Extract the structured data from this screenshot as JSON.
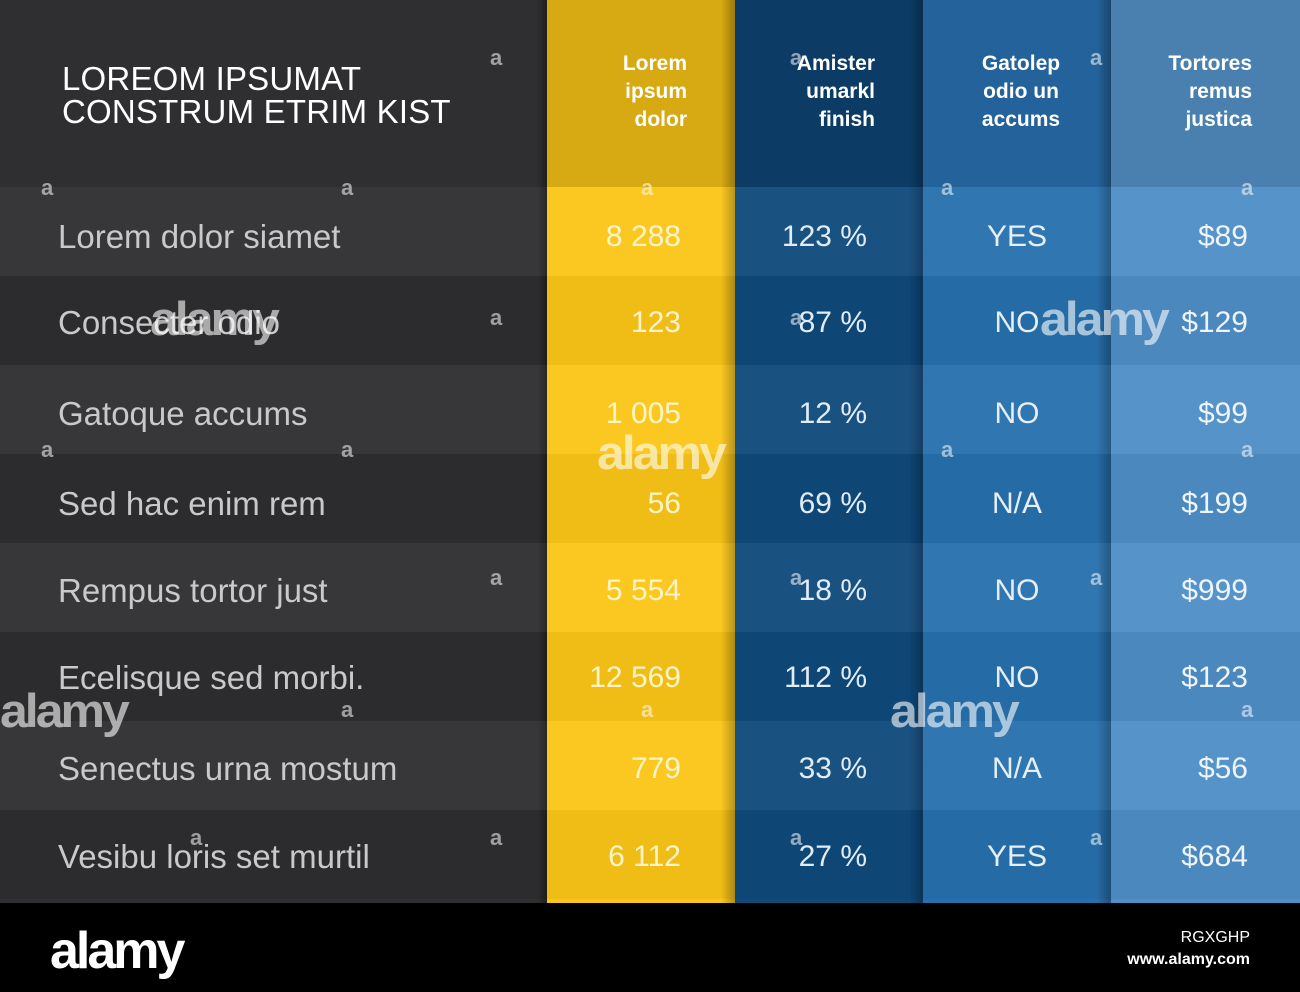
{
  "title_lines": [
    "LOREOM IPSUMAT",
    "CONSTRUM ETRIM KIST"
  ],
  "columns": [
    {
      "lines": [
        "Lorem",
        "ipsum",
        "dolor"
      ],
      "color": "#fbc619"
    },
    {
      "lines": [
        "Amister",
        "umarkl",
        "finish"
      ],
      "color": "#0f4a7c"
    },
    {
      "lines": [
        "Gatolep",
        "odio un",
        "accums"
      ],
      "color": "#2770ad"
    },
    {
      "lines": [
        "Tortores",
        "remus",
        "justica"
      ],
      "color": "#4e8fc7"
    }
  ],
  "rows": [
    {
      "label": "Lorem dolor siamet",
      "c1": "8 288",
      "c2": "123 %",
      "c3": "YES",
      "c4": "$89"
    },
    {
      "label": "Consecter odio",
      "c1": "123",
      "c2": "87 %",
      "c3": "NO",
      "c4": "$129"
    },
    {
      "label": "Gatoque accums",
      "c1": "1 005",
      "c2": "12 %",
      "c3": "NO",
      "c4": "$99"
    },
    {
      "label": "Sed hac enim rem",
      "c1": "56",
      "c2": "69 %",
      "c3": "N/A",
      "c4": "$199"
    },
    {
      "label": "Rempus tortor just",
      "c1": "5 554",
      "c2": "18 %",
      "c3": "NO",
      "c4": "$999"
    },
    {
      "label": "Ecelisque sed morbi.",
      "c1": "12 569",
      "c2": "112 %",
      "c3": "NO",
      "c4": "$123"
    },
    {
      "label": "Senectus urna mostum",
      "c1": "779",
      "c2": "33 %",
      "c3": "N/A",
      "c4": "$56"
    },
    {
      "label": "Vesibu loris set murtil",
      "c1": "6 112",
      "c2": "27 %",
      "c3": "YES",
      "c4": "$684"
    }
  ],
  "watermark": "alamy",
  "footer": {
    "logo": "alamy",
    "image_id": "RGXGHP",
    "url": "www.alamy.com"
  }
}
